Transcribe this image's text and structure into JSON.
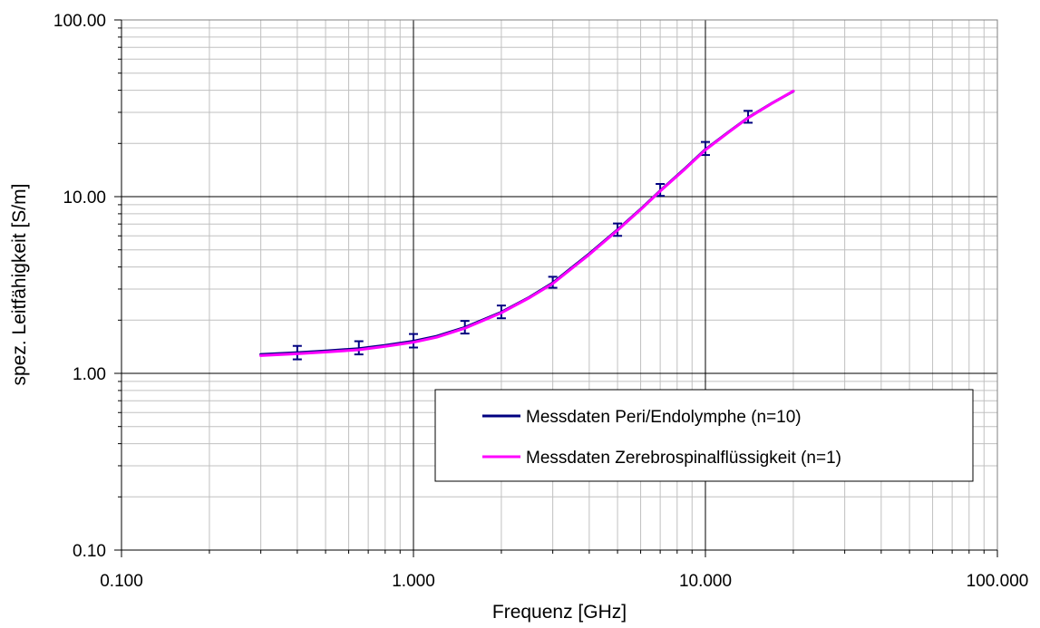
{
  "chart_data": {
    "type": "line",
    "xscale": "log",
    "yscale": "log",
    "xlim": [
      0.1,
      100
    ],
    "ylim": [
      0.1,
      100
    ],
    "xlabel": "Frequenz [GHz]",
    "ylabel": "spez. Leitfähigkeit [S/m]",
    "x_tick_labels": [
      "0.100",
      "1.000",
      "10.000",
      "100.000"
    ],
    "y_tick_labels": [
      "0.10",
      "1.00",
      "10.00",
      "100.00"
    ],
    "grid": true,
    "legend_position": "lower-right",
    "series": [
      {
        "name": "Messdaten Peri/Endolymphe (n=10)",
        "color": "#000080",
        "x": [
          0.3,
          0.4,
          0.5,
          0.65,
          0.8,
          1.0,
          1.2,
          1.5,
          2.0,
          2.5,
          3.0,
          4.0,
          5.0,
          6.0,
          7.0,
          8.5,
          10.0,
          12.0,
          14.0,
          17.0,
          20.0
        ],
        "y": [
          1.28,
          1.31,
          1.34,
          1.38,
          1.44,
          1.52,
          1.62,
          1.82,
          2.22,
          2.7,
          3.25,
          4.75,
          6.5,
          8.5,
          10.8,
          14.4,
          18.5,
          23.2,
          28.0,
          34.0,
          39.5
        ],
        "error_bars": {
          "x": [
            0.4,
            0.65,
            1.0,
            1.5,
            2.0,
            3.0,
            5.0,
            7.0,
            10.0,
            14.0
          ],
          "low": [
            1.2,
            1.28,
            1.4,
            1.68,
            2.05,
            3.05,
            6.0,
            10.1,
            17.2,
            26.2
          ],
          "high": [
            1.43,
            1.52,
            1.67,
            1.98,
            2.42,
            3.52,
            7.05,
            11.8,
            20.4,
            30.6
          ]
        }
      },
      {
        "name": "Messdaten Zerebrospinalflüssigkeit (n=1)",
        "color": "#ff00ff",
        "x": [
          0.3,
          0.4,
          0.5,
          0.65,
          0.8,
          1.0,
          1.2,
          1.5,
          2.0,
          2.5,
          3.0,
          4.0,
          5.0,
          6.0,
          7.0,
          8.5,
          10.0,
          12.0,
          14.0,
          17.0,
          20.0
        ],
        "y": [
          1.26,
          1.29,
          1.32,
          1.36,
          1.42,
          1.5,
          1.6,
          1.8,
          2.2,
          2.68,
          3.22,
          4.7,
          6.45,
          8.45,
          10.75,
          14.3,
          18.4,
          23.1,
          27.9,
          33.9,
          39.6
        ]
      }
    ]
  }
}
